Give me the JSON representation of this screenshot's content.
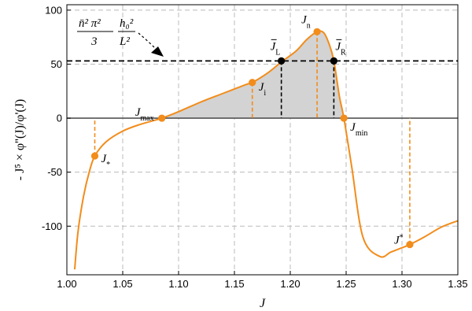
{
  "chart_data": {
    "type": "line",
    "xlabel": "J",
    "ylabel": "- J⁵ × φ''(J)/φ'(J)",
    "xlim": [
      1.0,
      1.35
    ],
    "ylim": [
      -145,
      105
    ],
    "xticks": [
      "1.00",
      "1.05",
      "1.10",
      "1.15",
      "1.20",
      "1.25",
      "1.30",
      "1.35"
    ],
    "yticks": [
      "-100",
      "-50",
      "0",
      "50",
      "100"
    ],
    "grid": true,
    "colors": {
      "curve": "#f28c1b",
      "fill": "#d3d3d3",
      "zero_line": "#555555",
      "level_line": "#000000",
      "grid": "#bbbbbb"
    },
    "series": [
      {
        "x": [
          1.007,
          1.01,
          1.015,
          1.02,
          1.025,
          1.035,
          1.05,
          1.065,
          1.085,
          1.1,
          1.12,
          1.14,
          1.16,
          1.166,
          1.18,
          1.192,
          1.205,
          1.215,
          1.224,
          1.23,
          1.235,
          1.239,
          1.244,
          1.248,
          1.255,
          1.265,
          1.28,
          1.29,
          1.3,
          1.307,
          1.32,
          1.335,
          1.35
        ],
        "y": [
          -140,
          -105,
          -72,
          -50,
          -35,
          -22,
          -12,
          -6,
          0,
          6,
          15,
          23,
          31,
          33,
          42,
          52,
          62,
          73,
          80,
          79,
          68,
          53,
          20,
          0,
          -45,
          -110,
          -128,
          -124,
          -120,
          -117,
          -110,
          -101,
          -95
        ]
      }
    ],
    "level_line": {
      "y": 53
    },
    "shaded_region": {
      "x_from": 1.085,
      "x_to": 1.248,
      "label": ""
    },
    "points": [
      {
        "label": "J",
        "sub": "*",
        "sup": "",
        "bar": false,
        "x": 1.025,
        "y": -35
      },
      {
        "label": "J",
        "sub": "max",
        "sup": "",
        "bar": false,
        "x": 1.085,
        "y": 0
      },
      {
        "label": "J",
        "sub": "i",
        "sup": "",
        "bar": false,
        "x": 1.166,
        "y": 33
      },
      {
        "label": "J",
        "sub": "L",
        "sup": "",
        "bar": true,
        "x": 1.192,
        "y": 53
      },
      {
        "label": "J",
        "sub": "n",
        "sup": "",
        "bar": false,
        "x": 1.224,
        "y": 80
      },
      {
        "label": "J",
        "sub": "R",
        "sup": "",
        "bar": true,
        "x": 1.239,
        "y": 53
      },
      {
        "label": "J",
        "sub": "min",
        "sup": "",
        "bar": false,
        "x": 1.248,
        "y": 0
      },
      {
        "label": "J",
        "sub": "",
        "sup": "*",
        "bar": false,
        "x": 1.307,
        "y": -117
      }
    ],
    "formula": {
      "numerator_left": "n̄² π²",
      "denominator_left": "3",
      "numerator_right": "h₀²",
      "denominator_right": "L²"
    }
  }
}
